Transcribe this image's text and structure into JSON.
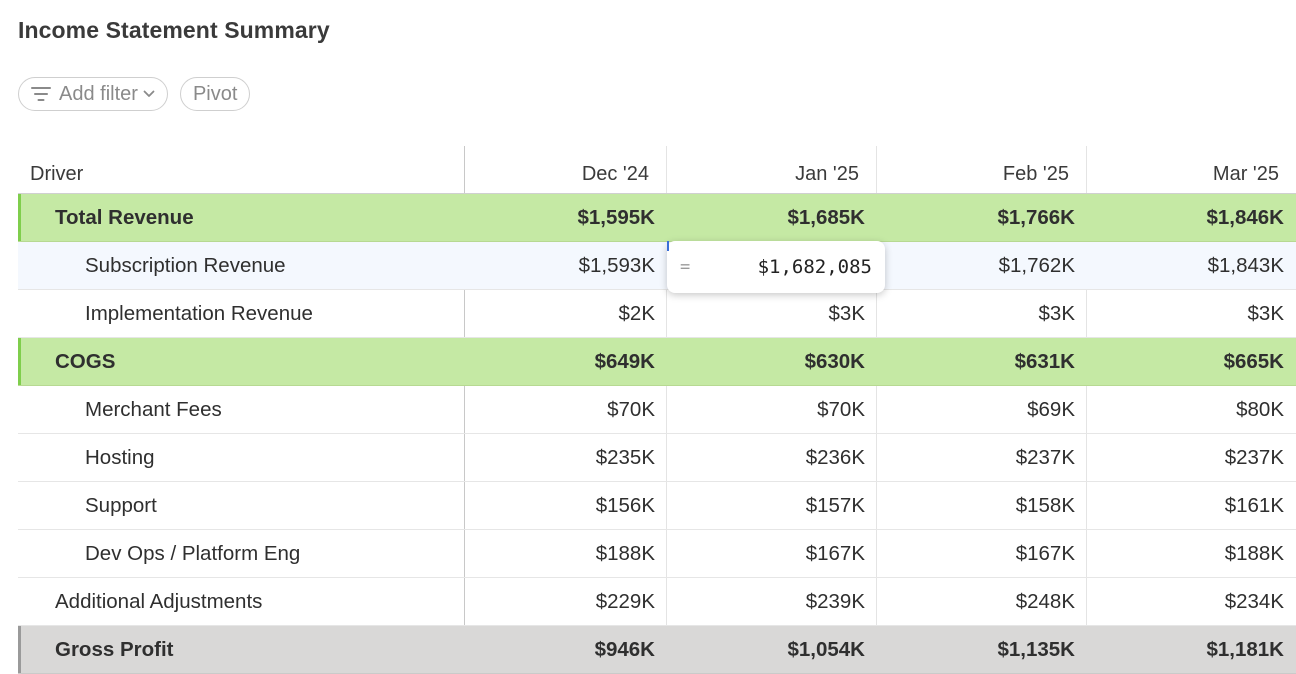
{
  "title": "Income Statement Summary",
  "toolbar": {
    "add_filter": "Add filter",
    "pivot": "Pivot"
  },
  "columns": {
    "driver": "Driver",
    "months": [
      "Dec '24",
      "Jan '25",
      "Feb '25",
      "Mar '25"
    ]
  },
  "rows": [
    {
      "label": "Total Revenue",
      "values": [
        "$1,595K",
        "$1,685K",
        "$1,766K",
        "$1,846K"
      ]
    },
    {
      "label": "Subscription Revenue",
      "values": [
        "$1,593K",
        "",
        "$1,762K",
        "$1,843K"
      ]
    },
    {
      "label": "Implementation Revenue",
      "values": [
        "$2K",
        "$3K",
        "$3K",
        "$3K"
      ]
    },
    {
      "label": "COGS",
      "values": [
        "$649K",
        "$630K",
        "$631K",
        "$665K"
      ]
    },
    {
      "label": "Merchant Fees",
      "values": [
        "$70K",
        "$70K",
        "$69K",
        "$80K"
      ]
    },
    {
      "label": "Hosting",
      "values": [
        "$235K",
        "$236K",
        "$237K",
        "$237K"
      ]
    },
    {
      "label": "Support",
      "values": [
        "$156K",
        "$157K",
        "$158K",
        "$161K"
      ]
    },
    {
      "label": "Dev Ops / Platform Eng",
      "values": [
        "$188K",
        "$167K",
        "$167K",
        "$188K"
      ]
    },
    {
      "label": "Additional Adjustments",
      "values": [
        "$229K",
        "$239K",
        "$248K",
        "$234K"
      ]
    },
    {
      "label": "Gross Profit",
      "values": [
        "$946K",
        "$1,054K",
        "$1,135K",
        "$1,181K"
      ]
    }
  ],
  "cell_editor": {
    "prefix": "=",
    "value": "$1,682,085"
  },
  "colors": {
    "group_row": "#c5e9a4",
    "group_accent": "#7fce4c",
    "total_row": "#d9d8d7",
    "selected_row": "#f4f8fe"
  }
}
